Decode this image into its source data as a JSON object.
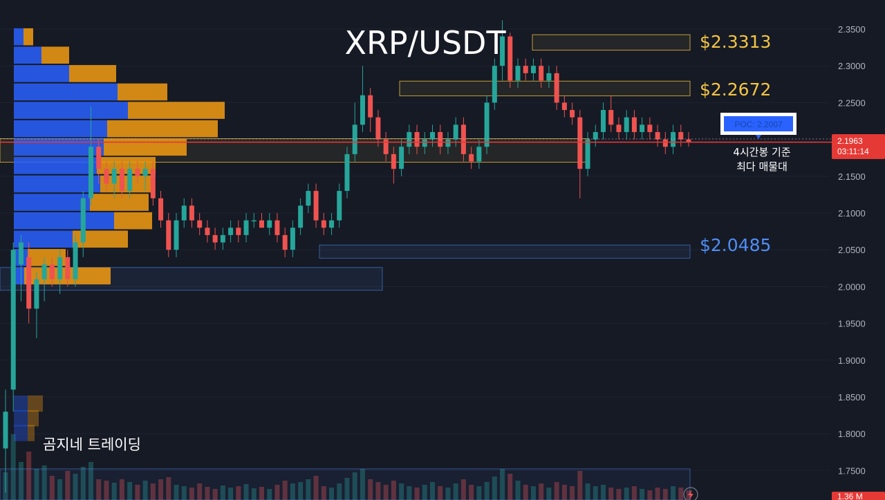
{
  "title": "XRP/USDT",
  "watermark": "곰지네 트레이딩",
  "colors": {
    "background": "#161a25",
    "up": "#26a69a",
    "down": "#ef5350",
    "vp_up": "#2962ff",
    "vp_down": "#f39c12",
    "level_gold": "#f5c542",
    "level_blue": "#4f8ef7",
    "current_line": "#e53935"
  },
  "levels": {
    "resistance_1": "$2.3313",
    "resistance_2": "$2.2672",
    "support_1": "$2.0485"
  },
  "poc": {
    "label": "POC: 2.2007",
    "note_line1": "4시간봉 기준",
    "note_line2": "최다 매물대"
  },
  "current_price": {
    "price": "2.1963",
    "countdown": "03:11:14"
  },
  "volume_tag": "1.36 M",
  "chart_data": {
    "type": "candlestick",
    "title": "XRP/USDT",
    "ylim": [
      1.735,
      2.365
    ],
    "y_ticks": [
      "2.3500",
      "2.3000",
      "2.2500",
      "2.2000",
      "2.1500",
      "2.1000",
      "2.0500",
      "2.0000",
      "1.9500",
      "1.9000",
      "1.8500",
      "1.8000",
      "1.7500"
    ],
    "zones": [
      {
        "name": "$2.3313",
        "from": 2.3213,
        "to": 2.3423,
        "color": "gold"
      },
      {
        "name": "$2.2672",
        "from": 2.2592,
        "to": 2.2792,
        "color": "gold"
      },
      {
        "name": "poc-zone",
        "from": 2.169,
        "to": 2.201,
        "color": "gold"
      },
      {
        "name": "$2.0485",
        "from": 2.0385,
        "to": 2.0565,
        "color": "blue"
      },
      {
        "name": "lower-zone",
        "from": 1.995,
        "to": 2.026,
        "color": "blue"
      }
    ],
    "volume_profile": {
      "bins_low": [
        2.002,
        2.027,
        2.052,
        2.077,
        2.102,
        2.127,
        2.152,
        2.177,
        2.202,
        2.227,
        2.252,
        2.277,
        2.302,
        2.327
      ],
      "up_volume": [
        15,
        20,
        85,
        145,
        110,
        125,
        120,
        130,
        135,
        165,
        150,
        80,
        40,
        14
      ],
      "down_volume": [
        125,
        55,
        80,
        55,
        85,
        75,
        85,
        120,
        160,
        140,
        72,
        68,
        40,
        14
      ]
    },
    "candles": [
      [
        1.78,
        1.72,
        1.83,
        1.86,
        "up"
      ],
      [
        1.86,
        1.83,
        2.05,
        2.06,
        "up"
      ],
      [
        2.03,
        1.98,
        2.06,
        2.07,
        "up"
      ],
      [
        2.04,
        1.95,
        1.97,
        2.06,
        "down"
      ],
      [
        1.97,
        1.93,
        2.01,
        2.02,
        "up"
      ],
      [
        2.01,
        1.98,
        2.03,
        2.04,
        "up"
      ],
      [
        2.03,
        2.0,
        2.01,
        2.04,
        "down"
      ],
      [
        2.01,
        1.99,
        2.04,
        2.05,
        "up"
      ],
      [
        2.04,
        2.0,
        2.01,
        2.05,
        "down"
      ],
      [
        2.01,
        2.0,
        2.06,
        2.07,
        "up"
      ],
      [
        2.06,
        2.04,
        2.12,
        2.13,
        "up"
      ],
      [
        2.12,
        2.11,
        2.19,
        2.245,
        "up"
      ],
      [
        2.19,
        2.14,
        2.16,
        2.2,
        "down"
      ],
      [
        2.16,
        2.13,
        2.14,
        2.17,
        "down"
      ],
      [
        2.14,
        2.12,
        2.16,
        2.17,
        "up"
      ],
      [
        2.16,
        2.12,
        2.13,
        2.17,
        "down"
      ],
      [
        2.13,
        2.12,
        2.16,
        2.17,
        "up"
      ],
      [
        2.16,
        2.14,
        2.15,
        2.17,
        "down"
      ],
      [
        2.15,
        2.13,
        2.16,
        2.17,
        "up"
      ],
      [
        2.16,
        2.11,
        2.12,
        2.17,
        "down"
      ],
      [
        2.12,
        2.08,
        2.09,
        2.13,
        "down"
      ],
      [
        2.09,
        2.04,
        2.05,
        2.1,
        "down"
      ],
      [
        2.05,
        2.04,
        2.09,
        2.1,
        "up"
      ],
      [
        2.09,
        2.08,
        2.11,
        2.12,
        "up"
      ],
      [
        2.11,
        2.08,
        2.09,
        2.12,
        "down"
      ],
      [
        2.09,
        2.07,
        2.08,
        2.1,
        "down"
      ],
      [
        2.08,
        2.06,
        2.07,
        2.09,
        "down"
      ],
      [
        2.07,
        2.05,
        2.06,
        2.08,
        "down"
      ],
      [
        2.06,
        2.05,
        2.07,
        2.08,
        "up"
      ],
      [
        2.07,
        2.06,
        2.08,
        2.09,
        "up"
      ],
      [
        2.08,
        2.06,
        2.07,
        2.09,
        "down"
      ],
      [
        2.07,
        2.06,
        2.09,
        2.1,
        "up"
      ],
      [
        2.09,
        2.08,
        2.09,
        2.1,
        "up"
      ],
      [
        2.09,
        2.08,
        2.08,
        2.1,
        "down"
      ],
      [
        2.08,
        2.07,
        2.09,
        2.1,
        "up"
      ],
      [
        2.09,
        2.06,
        2.07,
        2.1,
        "down"
      ],
      [
        2.07,
        2.04,
        2.05,
        2.08,
        "down"
      ],
      [
        2.05,
        2.04,
        2.08,
        2.09,
        "up"
      ],
      [
        2.08,
        2.07,
        2.11,
        2.12,
        "up"
      ],
      [
        2.11,
        2.1,
        2.13,
        2.14,
        "up"
      ],
      [
        2.13,
        2.08,
        2.09,
        2.14,
        "down"
      ],
      [
        2.09,
        2.07,
        2.08,
        2.1,
        "down"
      ],
      [
        2.08,
        2.07,
        2.09,
        2.1,
        "up"
      ],
      [
        2.09,
        2.08,
        2.13,
        2.14,
        "up"
      ],
      [
        2.13,
        2.12,
        2.18,
        2.19,
        "up"
      ],
      [
        2.18,
        2.17,
        2.22,
        2.25,
        "up"
      ],
      [
        2.22,
        2.21,
        2.26,
        2.3,
        "up"
      ],
      [
        2.26,
        2.21,
        2.23,
        2.27,
        "down"
      ],
      [
        2.23,
        2.19,
        2.2,
        2.24,
        "down"
      ],
      [
        2.2,
        2.17,
        2.18,
        2.21,
        "down"
      ],
      [
        2.18,
        2.14,
        2.16,
        2.19,
        "down"
      ],
      [
        2.16,
        2.15,
        2.19,
        2.2,
        "up"
      ],
      [
        2.19,
        2.18,
        2.21,
        2.22,
        "up"
      ],
      [
        2.21,
        2.18,
        2.19,
        2.22,
        "down"
      ],
      [
        2.19,
        2.18,
        2.2,
        2.21,
        "up"
      ],
      [
        2.2,
        2.19,
        2.21,
        2.22,
        "up"
      ],
      [
        2.21,
        2.18,
        2.19,
        2.22,
        "down"
      ],
      [
        2.19,
        2.18,
        2.2,
        2.21,
        "up"
      ],
      [
        2.2,
        2.19,
        2.22,
        2.23,
        "up"
      ],
      [
        2.22,
        2.17,
        2.18,
        2.23,
        "down"
      ],
      [
        2.18,
        2.16,
        2.17,
        2.19,
        "down"
      ],
      [
        2.17,
        2.16,
        2.19,
        2.2,
        "up"
      ],
      [
        2.19,
        2.18,
        2.25,
        2.26,
        "up"
      ],
      [
        2.25,
        2.24,
        2.3,
        2.31,
        "up"
      ],
      [
        2.3,
        2.28,
        2.34,
        2.362,
        "up"
      ],
      [
        2.34,
        2.27,
        2.28,
        2.345,
        "down"
      ],
      [
        2.28,
        2.27,
        2.3,
        2.31,
        "up"
      ],
      [
        2.3,
        2.28,
        2.29,
        2.31,
        "down"
      ],
      [
        2.29,
        2.28,
        2.3,
        2.31,
        "up"
      ],
      [
        2.3,
        2.27,
        2.28,
        2.31,
        "down"
      ],
      [
        2.28,
        2.27,
        2.29,
        2.3,
        "up"
      ],
      [
        2.29,
        2.24,
        2.25,
        2.3,
        "down"
      ],
      [
        2.25,
        2.23,
        2.24,
        2.26,
        "down"
      ],
      [
        2.24,
        2.22,
        2.23,
        2.25,
        "down"
      ],
      [
        2.23,
        2.12,
        2.16,
        2.24,
        "down"
      ],
      [
        2.16,
        2.15,
        2.2,
        2.21,
        "up"
      ],
      [
        2.2,
        2.19,
        2.21,
        2.22,
        "up"
      ],
      [
        2.21,
        2.2,
        2.24,
        2.25,
        "up"
      ],
      [
        2.24,
        2.21,
        2.22,
        2.26,
        "down"
      ],
      [
        2.22,
        2.2,
        2.21,
        2.23,
        "down"
      ],
      [
        2.21,
        2.2,
        2.23,
        2.24,
        "up"
      ],
      [
        2.23,
        2.2,
        2.21,
        2.24,
        "down"
      ],
      [
        2.21,
        2.2,
        2.22,
        2.23,
        "up"
      ],
      [
        2.22,
        2.2,
        2.21,
        2.23,
        "down"
      ],
      [
        2.21,
        2.19,
        2.2,
        2.22,
        "down"
      ],
      [
        2.2,
        2.18,
        2.19,
        2.21,
        "down"
      ],
      [
        2.19,
        2.18,
        2.21,
        2.22,
        "up"
      ],
      [
        2.21,
        2.19,
        2.2,
        2.22,
        "down"
      ],
      [
        2.2,
        2.19,
        2.1963,
        2.21,
        "down"
      ]
    ],
    "volume_bars": [
      40,
      95,
      55,
      70,
      45,
      50,
      35,
      30,
      42,
      38,
      48,
      55,
      30,
      28,
      25,
      30,
      26,
      22,
      28,
      24,
      30,
      33,
      22,
      20,
      18,
      24,
      19,
      16,
      21,
      18,
      20,
      23,
      17,
      19,
      16,
      22,
      28,
      24,
      26,
      30,
      35,
      20,
      18,
      24,
      32,
      40,
      45,
      30,
      26,
      22,
      28,
      24,
      20,
      18,
      22,
      26,
      20,
      18,
      24,
      30,
      22,
      20,
      26,
      34,
      45,
      38,
      28,
      22,
      20,
      24,
      18,
      26,
      22,
      20,
      42,
      24,
      20,
      22,
      18,
      16,
      18,
      20,
      16,
      14,
      18,
      16,
      20,
      18,
      14
    ]
  }
}
